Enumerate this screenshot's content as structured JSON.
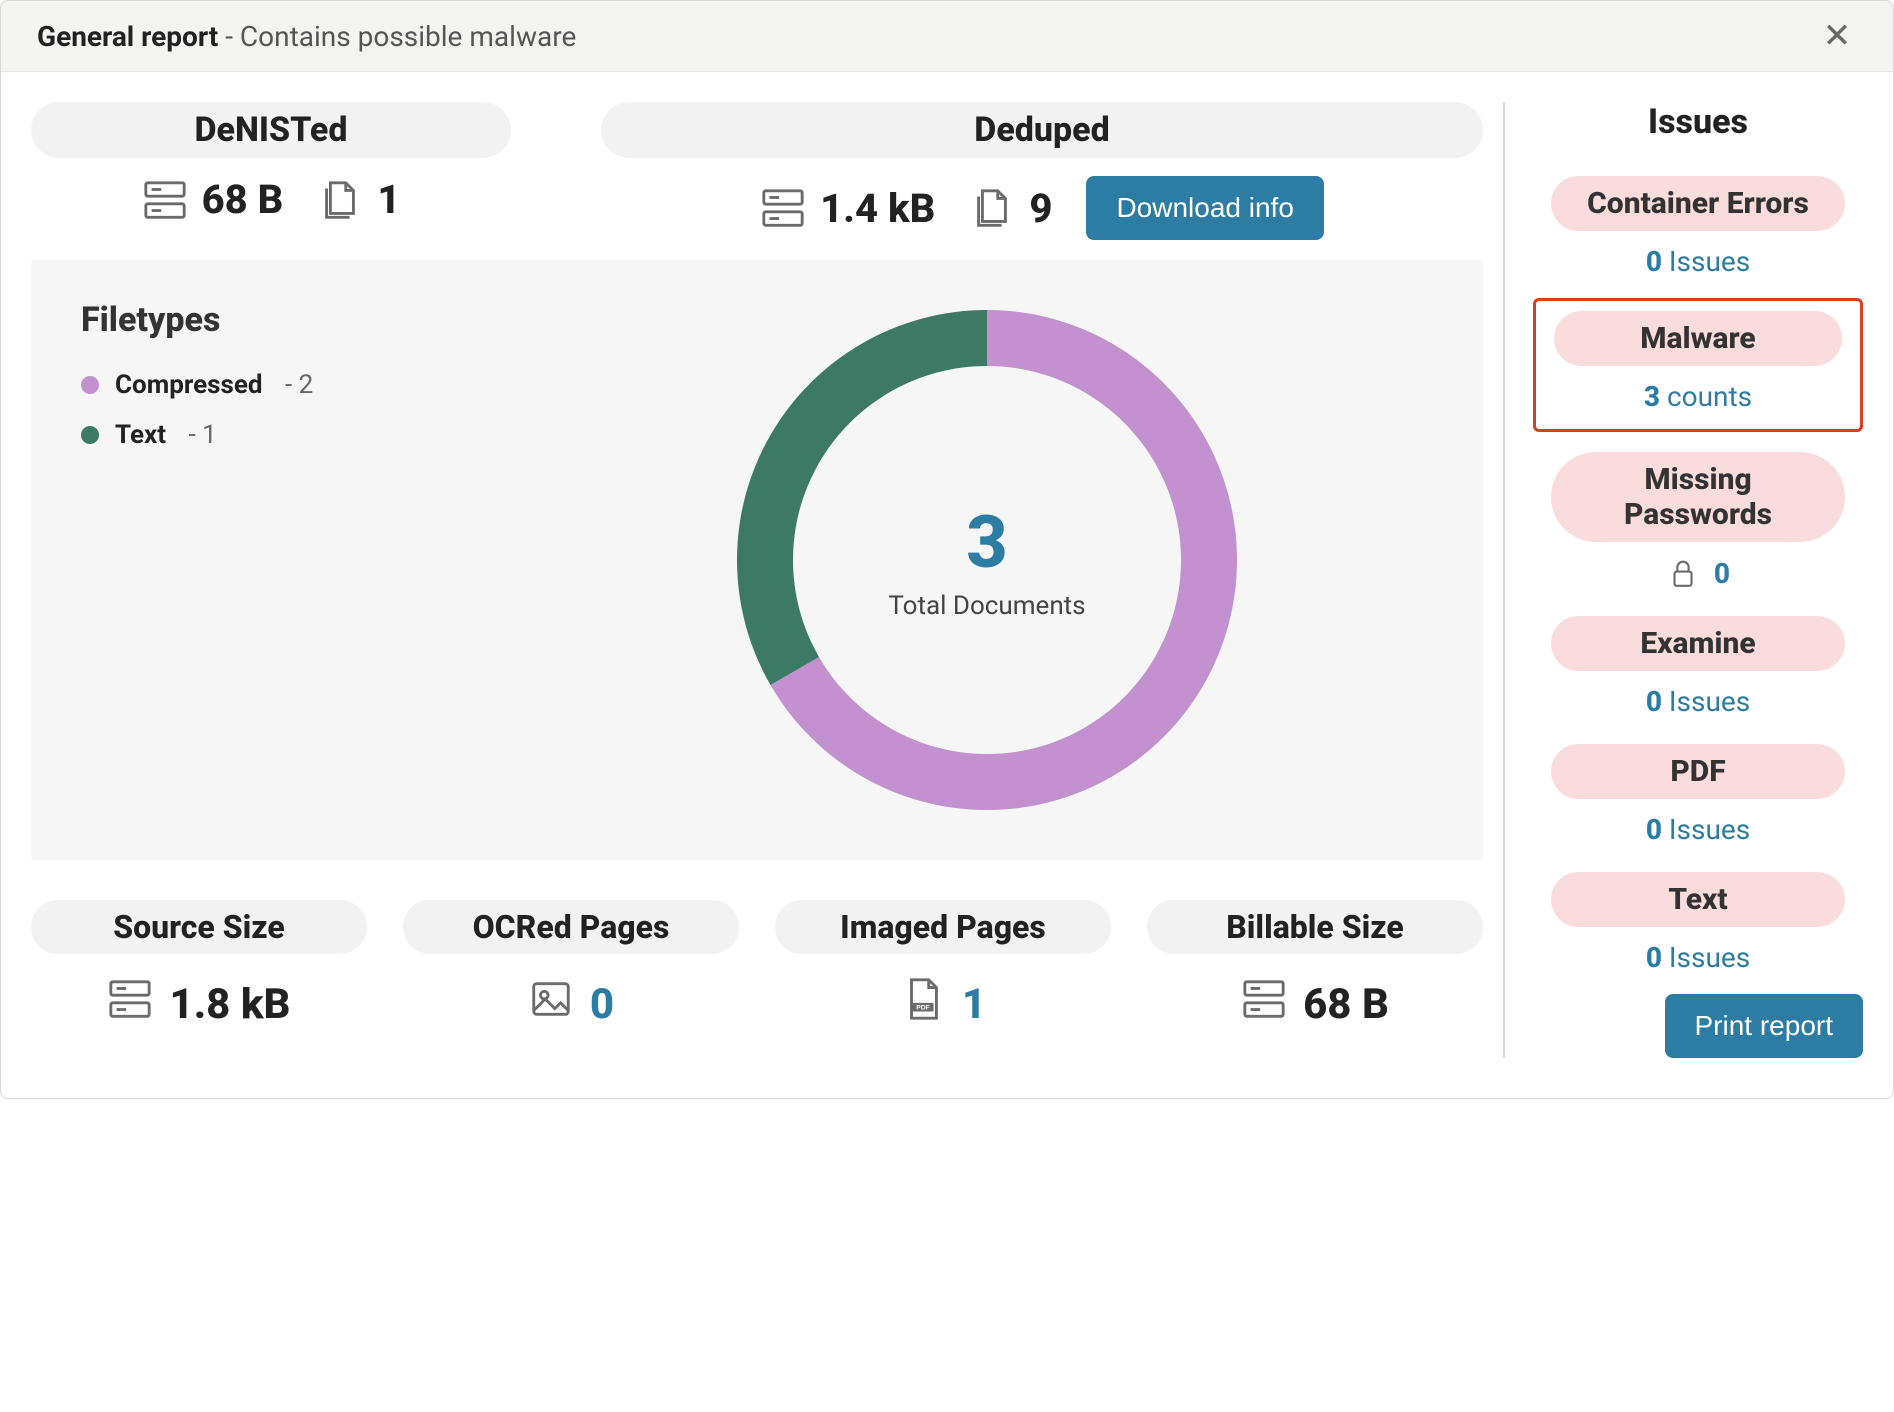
{
  "header": {
    "title": "General report",
    "subtitle": "Contains possible malware"
  },
  "top_cards": {
    "denisted": {
      "label": "DeNISTed",
      "size": "68 B",
      "docs": "1"
    },
    "deduped": {
      "label": "Deduped",
      "size": "1.4 kB",
      "docs": "9",
      "download_label": "Download info"
    }
  },
  "filetypes": {
    "title": "Filetypes",
    "legend": [
      {
        "label": "Compressed",
        "count": "2",
        "color": "#c391cf"
      },
      {
        "label": "Text",
        "count": "1",
        "color": "#3d7a66"
      }
    ],
    "donut": {
      "total_number": "3",
      "total_label": "Total Documents",
      "series": [
        {
          "name": "Compressed",
          "value": 2,
          "color": "#c391cf"
        },
        {
          "name": "Text",
          "value": 1,
          "color": "#3d7a66"
        }
      ],
      "ring_color_bg": "#f6f6f6",
      "ring_thickness": 56,
      "outer_radius": 250
    }
  },
  "bottom_cards": [
    {
      "label": "Source Size",
      "icon": "server",
      "value": "1.8 kB",
      "link": false
    },
    {
      "label": "OCRed Pages",
      "icon": "image",
      "value": "0",
      "link": true
    },
    {
      "label": "Imaged Pages",
      "icon": "pdf",
      "value": "1",
      "link": true
    },
    {
      "label": "Billable Size",
      "icon": "server",
      "value": "68 B",
      "link": false
    }
  ],
  "sidebar": {
    "title": "Issues",
    "print_label": "Print report",
    "items": [
      {
        "name": "Container Errors",
        "value": "0",
        "unit": "Issues",
        "highlight": false
      },
      {
        "name": "Malware",
        "value": "3",
        "unit": "counts",
        "highlight": true
      },
      {
        "name": "Missing Passwords",
        "value": "0",
        "unit": "",
        "highlight": false,
        "lock": true
      },
      {
        "name": "Examine",
        "value": "0",
        "unit": "Issues",
        "highlight": false
      },
      {
        "name": "PDF",
        "value": "0",
        "unit": "Issues",
        "highlight": false
      },
      {
        "name": "Text",
        "value": "0",
        "unit": "Issues",
        "highlight": false
      }
    ]
  },
  "colors": {
    "accent": "#2d7ca3",
    "pink_pill": "#fadcdc",
    "highlight_border": "#e13a1e",
    "grey_pill": "#f2f2f2",
    "panel_bg": "#f6f6f6"
  }
}
